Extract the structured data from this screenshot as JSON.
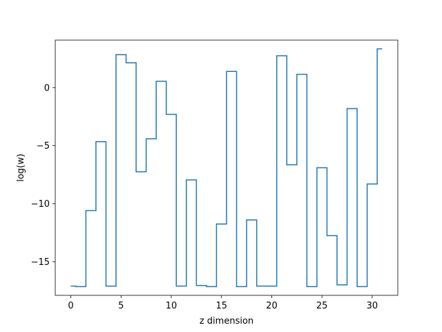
{
  "chart_data": {
    "type": "line",
    "drawstyle": "steps-mid",
    "xlabel": "z dimension",
    "ylabel": "log(w)",
    "xlim": [
      -1.55,
      32.55
    ],
    "ylim": [
      -17.9,
      4.1
    ],
    "xticks": [
      0,
      5,
      10,
      15,
      20,
      25,
      30
    ],
    "yticks": [
      -15,
      -10,
      -5,
      0
    ],
    "grid": false,
    "series": [
      {
        "color": "#1f77b4",
        "x": [
          0,
          1,
          2,
          3,
          4,
          5,
          6,
          7,
          8,
          9,
          10,
          11,
          12,
          13,
          14,
          15,
          16,
          17,
          18,
          19,
          20,
          21,
          22,
          23,
          24,
          25,
          26,
          27,
          28,
          29,
          30,
          31
        ],
        "y": [
          -17.1,
          -17.15,
          -10.6,
          -4.65,
          -17.1,
          2.85,
          2.15,
          -7.25,
          -4.4,
          0.55,
          -2.3,
          -17.1,
          -7.95,
          -17.05,
          -17.15,
          -11.75,
          1.4,
          -17.15,
          -11.4,
          -17.1,
          -17.1,
          2.75,
          -6.65,
          1.15,
          -17.15,
          -6.9,
          -12.75,
          -17.0,
          -1.8,
          -17.15,
          -8.3,
          3.35
        ]
      }
    ]
  }
}
